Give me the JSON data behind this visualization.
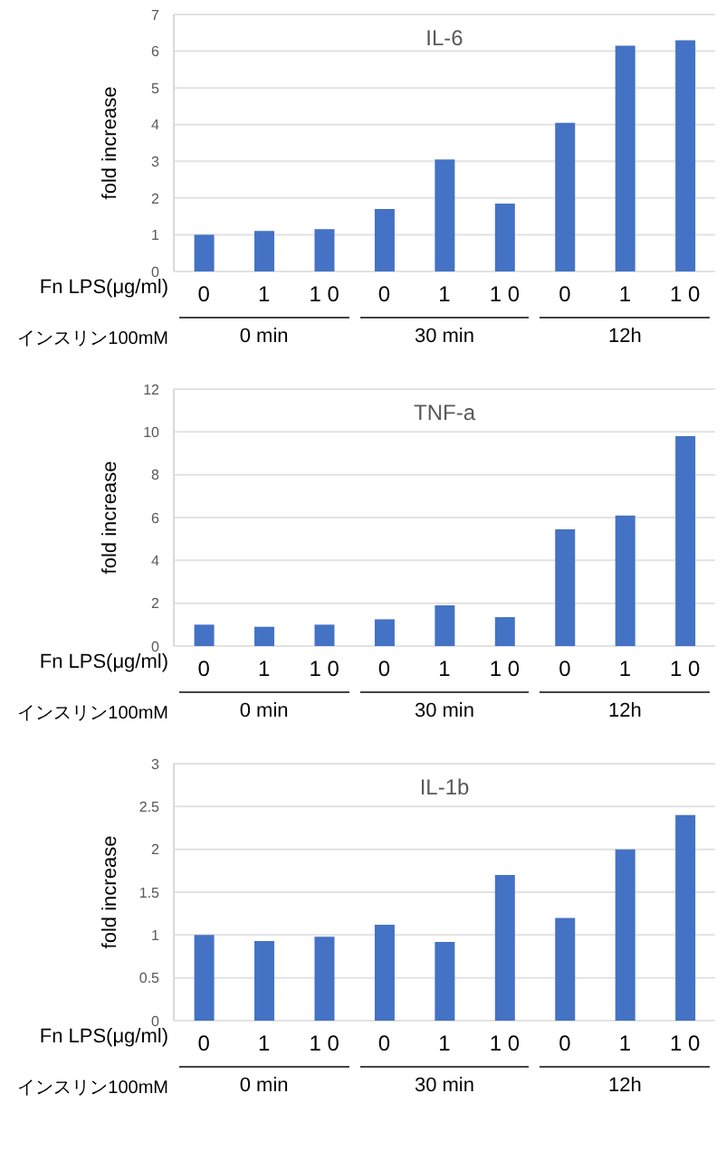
{
  "chart_data": [
    {
      "type": "bar",
      "title": "IL-6",
      "ylabel": "fold increase",
      "categories": [
        "0",
        "1",
        "1 0",
        "0",
        "1",
        "1 0",
        "0",
        "1",
        "1 0"
      ],
      "values": [
        1.0,
        1.1,
        1.15,
        1.7,
        3.05,
        1.85,
        4.05,
        6.15,
        6.3
      ],
      "color": "#4472c4",
      "ylim": [
        0,
        7
      ],
      "yticks": [
        0,
        1,
        2,
        3,
        4,
        5,
        6,
        7
      ],
      "grid": "y",
      "annotations": [
        "Fn LPS(μg/ml)",
        "インスリン100mM",
        "0 min",
        "30 min",
        "12h"
      ]
    },
    {
      "type": "bar",
      "title": "TNF-a",
      "ylabel": "fold increase",
      "categories": [
        "0",
        "1",
        "1 0",
        "0",
        "1",
        "1 0",
        "0",
        "1",
        "1 0"
      ],
      "values": [
        1.0,
        0.9,
        1.0,
        1.25,
        1.9,
        1.35,
        5.45,
        6.1,
        9.8
      ],
      "color": "#4472c4",
      "ylim": [
        0,
        12
      ],
      "yticks": [
        0,
        2,
        4,
        6,
        8,
        10,
        12
      ],
      "grid": "y",
      "annotations": [
        "Fn LPS(μg/ml)",
        "インスリン100mM",
        "0 min",
        "30 min",
        "12h"
      ]
    },
    {
      "type": "bar",
      "title": "IL-1b",
      "ylabel": "fold increase",
      "categories": [
        "0",
        "1",
        "1 0",
        "0",
        "1",
        "1 0",
        "0",
        "1",
        "1 0"
      ],
      "values": [
        1.0,
        0.93,
        0.98,
        1.12,
        0.92,
        1.7,
        1.2,
        2.0,
        2.4
      ],
      "color": "#4472c4",
      "ylim": [
        0,
        3
      ],
      "yticks": [
        0,
        0.5,
        1,
        1.5,
        2,
        2.5,
        3
      ],
      "grid": "y",
      "annotations": [
        "Fn LPS(μg/ml)",
        "インスリン100mM",
        "0 min",
        "30 min",
        "12h"
      ]
    }
  ]
}
